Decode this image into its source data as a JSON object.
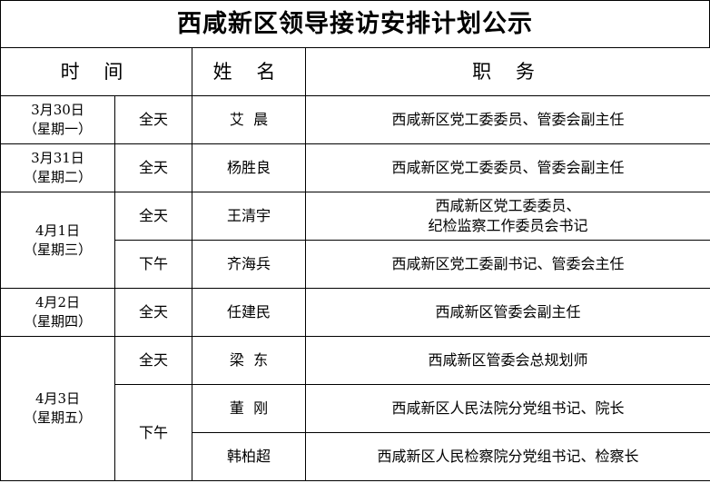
{
  "title": "西咸新区领导接访安排计划公示",
  "headers": {
    "time": "时 间",
    "name": "姓 名",
    "position": "职 务"
  },
  "days": [
    {
      "date": "3月30日",
      "weekday": "（星期一）",
      "entries": [
        {
          "period": "全天",
          "name": "艾  晨",
          "position": [
            "西咸新区党工委委员、管委会副主任"
          ]
        }
      ]
    },
    {
      "date": "3月31日",
      "weekday": "（星期二）",
      "entries": [
        {
          "period": "全天",
          "name": "杨胜良",
          "position": [
            "西咸新区党工委委员、管委会副主任"
          ]
        }
      ]
    },
    {
      "date": "4月1日",
      "weekday": "（星期三）",
      "entries": [
        {
          "period": "全天",
          "name": "王清宇",
          "position": [
            "西咸新区党工委委员、",
            "纪检监察工作委员会书记"
          ]
        },
        {
          "period": "下午",
          "name": "齐海兵",
          "position": [
            "西咸新区党工委副书记、管委会主任"
          ]
        }
      ]
    },
    {
      "date": "4月2日",
      "weekday": "（星期四）",
      "entries": [
        {
          "period": "全天",
          "name": "任建民",
          "position": [
            "西咸新区管委会副主任"
          ]
        }
      ]
    },
    {
      "date": "4月3日",
      "weekday": "（星期五）",
      "entries": [
        {
          "period": "全天",
          "name": "梁  东",
          "position": [
            "西咸新区管委会总规划师"
          ]
        },
        {
          "period": "下午",
          "name": "董  刚",
          "position": [
            "西咸新区人民法院分党组书记、院长"
          ]
        },
        {
          "period": "",
          "name": "韩柏超",
          "position": [
            "西咸新区人民检察院分党组书记、检察长"
          ]
        }
      ]
    }
  ]
}
